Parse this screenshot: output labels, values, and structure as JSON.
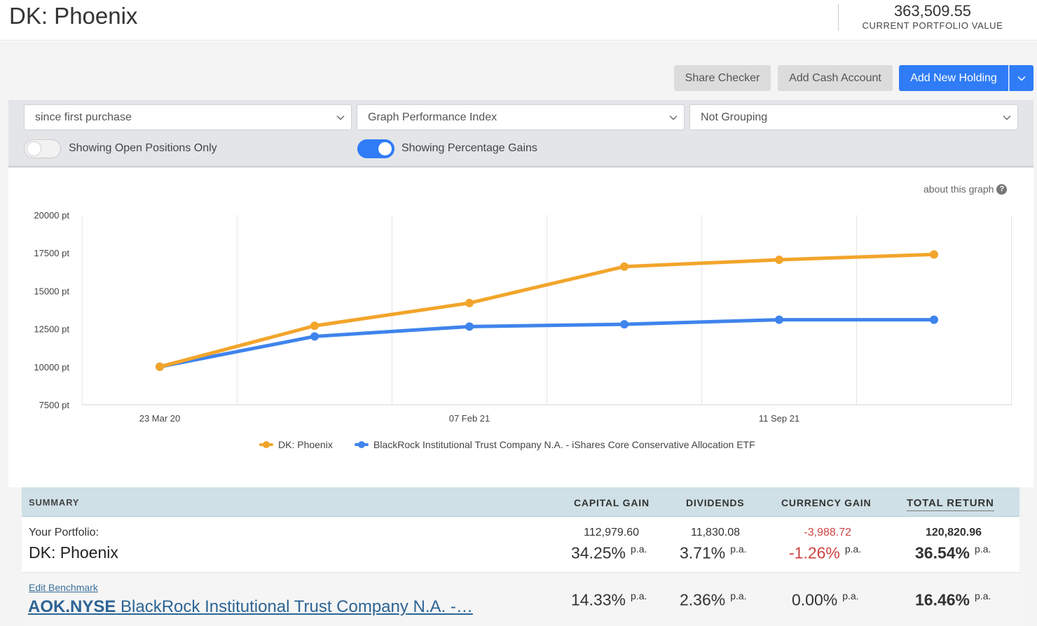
{
  "header": {
    "title": "DK: Phoenix",
    "portfolio_value": "363,509.55",
    "portfolio_value_label": "CURRENT PORTFOLIO VALUE"
  },
  "toolbar": {
    "share_checker": "Share Checker",
    "add_cash_account": "Add Cash Account",
    "add_new_holding": "Add New Holding"
  },
  "filters": {
    "period": "since first purchase",
    "graph_type": "Graph Performance Index",
    "grouping": "Not Grouping",
    "open_positions_label": "Showing Open Positions Only",
    "open_positions_on": false,
    "percentage_gains_label": "Showing Percentage Gains",
    "percentage_gains_on": true
  },
  "about_graph": "about this graph",
  "help_symbol": "?",
  "chart_data": {
    "type": "line",
    "x": [
      "23 Mar 20",
      "",
      "07 Feb 21",
      "",
      "11 Sep 21",
      ""
    ],
    "xtick_labels": [
      "23 Mar 20",
      "07 Feb 21",
      "11 Sep 21"
    ],
    "yticks": [
      "20000 pt",
      "17500 pt",
      "15000 pt",
      "12500 pt",
      "10000 pt",
      "7500 pt"
    ],
    "ylim": [
      7500,
      20000
    ],
    "grid": "vertical",
    "legend_position": "bottom",
    "series": [
      {
        "name": "DK: Phoenix",
        "color": "#f2a52b",
        "values": [
          10000,
          12700,
          14200,
          16600,
          17050,
          17400
        ]
      },
      {
        "name": "BlackRock Institutional Trust Company N.A. - iShares Core Conservative Allocation ETF",
        "color": "#3f84ec",
        "values": [
          10000,
          12000,
          12650,
          12800,
          13100,
          13100
        ]
      }
    ]
  },
  "summary": {
    "headers": {
      "summary": "SUMMARY",
      "capital_gain": "CAPITAL GAIN",
      "dividends": "DIVIDENDS",
      "currency_gain": "CURRENCY GAIN",
      "total_return": "TOTAL RETURN"
    },
    "portfolio": {
      "label": "Your Portfolio:",
      "name": "DK: Phoenix",
      "capital_gain_amount": "112,979.60",
      "capital_gain_pct": "34.25%",
      "dividends_amount": "11,830.08",
      "dividends_pct": "3.71%",
      "currency_gain_amount": "-3,988.72",
      "currency_gain_pct": "-1.26%",
      "total_return_amount": "120,820.96",
      "total_return_pct": "36.54%"
    },
    "benchmark": {
      "edit_label": "Edit Benchmark",
      "ticker": "AOK.NYSE",
      "name": "BlackRock Institutional Trust Company N.A. -…",
      "capital_gain_pct": "14.33%",
      "dividends_pct": "2.36%",
      "currency_gain_pct": "0.00%",
      "total_return_pct": "16.46%"
    },
    "pa_suffix": "p.a."
  }
}
